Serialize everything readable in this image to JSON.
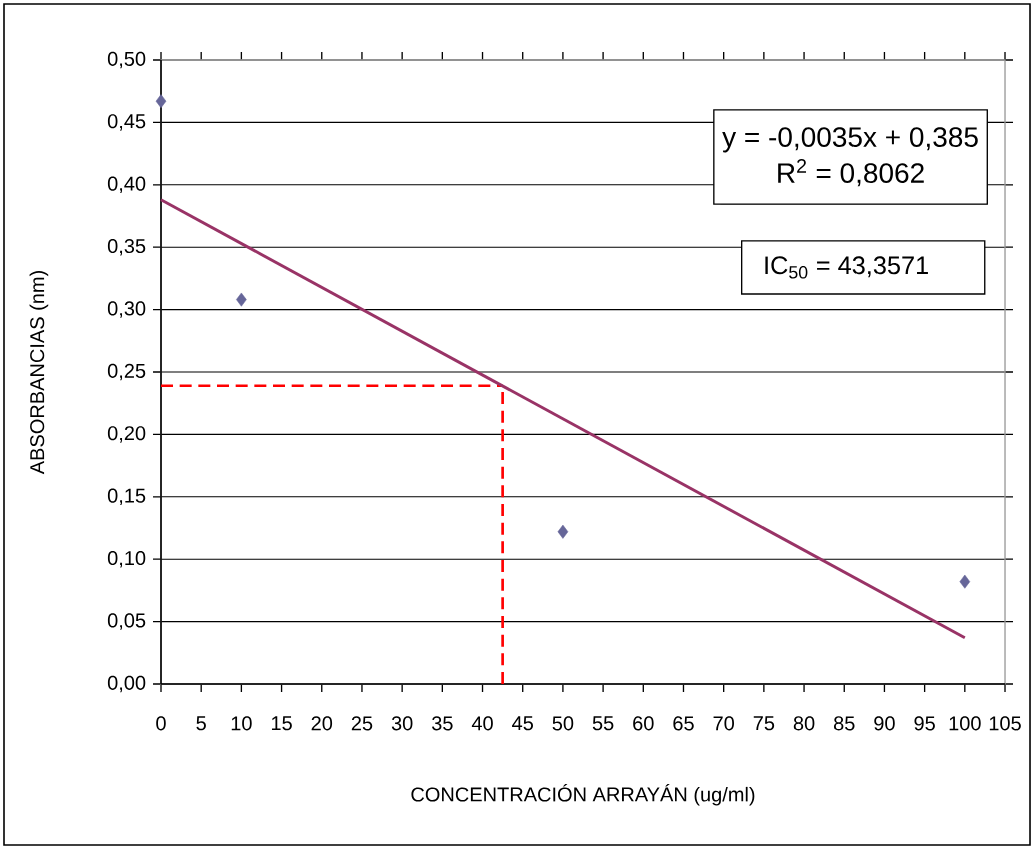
{
  "chart_data": {
    "type": "scatter",
    "xlabel": "CONCENTRACIÓN ARRAYÁN (ug/ml)",
    "ylabel": "ABSORBANCIAS (nm)",
    "series": [
      {
        "type": "scatter",
        "color": "#666699",
        "marker": "diamond",
        "x": [
          0,
          10,
          50,
          100
        ],
        "values": [
          0.467,
          0.308,
          0.122,
          0.082
        ]
      },
      {
        "type": "line",
        "color": "#993366",
        "line_style": "solid",
        "x": [
          0,
          100
        ],
        "values": [
          0.388,
          0.037
        ]
      }
    ],
    "xlim": [
      0,
      105
    ],
    "xticks": [
      0,
      5,
      10,
      15,
      20,
      25,
      30,
      35,
      40,
      45,
      50,
      55,
      60,
      65,
      70,
      75,
      80,
      85,
      90,
      95,
      100,
      105
    ],
    "ylim": [
      0,
      0.5
    ],
    "yticks": [
      {
        "value": 0,
        "label": "0,00"
      },
      {
        "value": 0.05,
        "label": "0,05"
      },
      {
        "value": 0.1,
        "label": "0,10"
      },
      {
        "value": 0.15,
        "label": "0,15"
      },
      {
        "value": 0.2,
        "label": "0,20"
      },
      {
        "value": 0.25,
        "label": "0,25"
      },
      {
        "value": 0.3,
        "label": "0,30"
      },
      {
        "value": 0.35,
        "label": "0,35"
      },
      {
        "value": 0.4,
        "label": "0,40"
      },
      {
        "value": 0.45,
        "label": "0,45"
      },
      {
        "value": 0.5,
        "label": "0,50"
      }
    ],
    "grid": "y",
    "ref_lines": [
      {
        "axis": "y",
        "value": 0.239,
        "color": "#ff0000",
        "line_style": "dashed"
      },
      {
        "axis": "x",
        "value": 42.5,
        "color": "#ff0000",
        "line_style": "dashed"
      }
    ],
    "annotations": [
      "y = -0,0035x + 0,385",
      "R$^{2}$ = 0,8062",
      "IC$_{50}$ = 43,3571"
    ]
  }
}
